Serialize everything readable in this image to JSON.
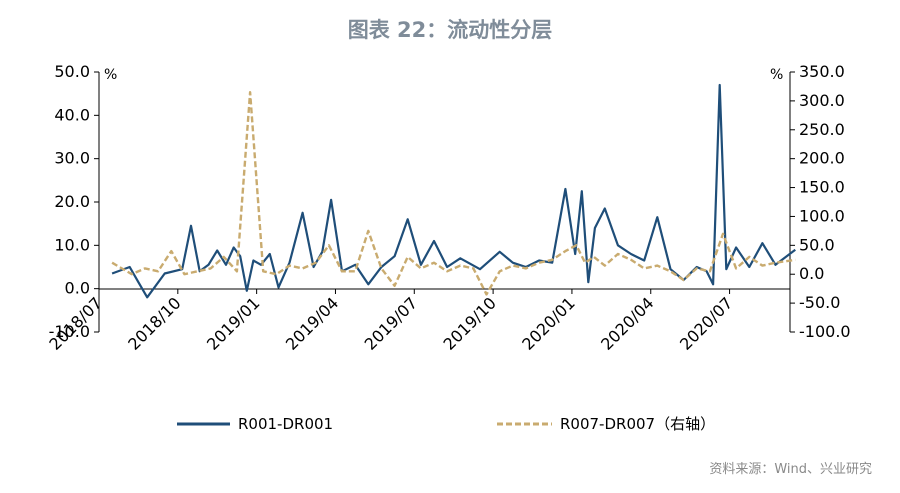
{
  "title": "图表 22：流动性分层",
  "source": "资料来源：Wind、兴业研究",
  "colors": {
    "series1": "#1f4e79",
    "series2": "#c9ab6f"
  },
  "chart_data": {
    "type": "line",
    "title": "图表 22：流动性分层",
    "left_unit": "%",
    "right_unit": "%",
    "y_left_lim": [
      -10,
      50
    ],
    "y_right_lim": [
      -100,
      350
    ],
    "y_left_ticks": [
      "50.0",
      "40.0",
      "30.0",
      "20.0",
      "10.0",
      "0.0",
      "-10.0"
    ],
    "y_right_ticks": [
      "350.0",
      "300.0",
      "250.0",
      "200.0",
      "150.0",
      "100.0",
      "50.0",
      "0.0",
      "-50.0",
      "-100.0"
    ],
    "x_ticks": [
      "2018/07",
      "2018/10",
      "2019/01",
      "2019/04",
      "2019/07",
      "2019/10",
      "2020/01",
      "2020/04",
      "2020/07"
    ],
    "legend_position": "bottom",
    "series": [
      {
        "name": "R001-DR001",
        "axis": "left",
        "style": "solid",
        "points": [
          [
            "2018/07",
            3.5
          ],
          [
            "2018/08",
            5.0
          ],
          [
            "2018/08",
            1.5
          ],
          [
            "2018/08",
            -2.0
          ],
          [
            "2018/09",
            3.5
          ],
          [
            "2018/10",
            4.5
          ],
          [
            "2018/10",
            14.5
          ],
          [
            "2018/10",
            4.0
          ],
          [
            "2018/11",
            5.5
          ],
          [
            "2018/11",
            8.8
          ],
          [
            "2018/11",
            5.5
          ],
          [
            "2018/12",
            9.5
          ],
          [
            "2018/12",
            7.5
          ],
          [
            "2018/12",
            -0.5
          ],
          [
            "2018/12",
            6.5
          ],
          [
            "2019/01",
            5.5
          ],
          [
            "2019/01",
            8.0
          ],
          [
            "2019/01",
            0.3
          ],
          [
            "2019/02",
            6.0
          ],
          [
            "2019/02",
            17.5
          ],
          [
            "2019/03",
            5.0
          ],
          [
            "2019/03",
            8.5
          ],
          [
            "2019/03",
            20.5
          ],
          [
            "2019/04",
            4.0
          ],
          [
            "2019/04",
            5.5
          ],
          [
            "2019/05",
            1.0
          ],
          [
            "2019/05",
            5.0
          ],
          [
            "2019/06",
            7.5
          ],
          [
            "2019/06",
            16.0
          ],
          [
            "2019/07",
            5.5
          ],
          [
            "2019/07",
            11.0
          ],
          [
            "2019/08",
            5.0
          ],
          [
            "2019/08",
            7.0
          ],
          [
            "2019/09",
            4.5
          ],
          [
            "2019/10",
            8.5
          ],
          [
            "2019/10",
            6.0
          ],
          [
            "2019/11",
            5.0
          ],
          [
            "2019/11",
            6.5
          ],
          [
            "2019/12",
            6.0
          ],
          [
            "2019/12",
            23.0
          ],
          [
            "2020/01",
            8.0
          ],
          [
            "2020/01",
            22.5
          ],
          [
            "2020/01",
            1.5
          ],
          [
            "2020/01",
            14.0
          ],
          [
            "2020/02",
            18.5
          ],
          [
            "2020/02",
            10.0
          ],
          [
            "2020/03",
            8.0
          ],
          [
            "2020/03",
            6.5
          ],
          [
            "2020/04",
            16.5
          ],
          [
            "2020/04",
            4.5
          ],
          [
            "2020/05",
            2.0
          ],
          [
            "2020/05",
            5.0
          ],
          [
            "2020/06",
            4.0
          ],
          [
            "2020/06",
            1.0
          ],
          [
            "2020/06",
            47.0
          ],
          [
            "2020/06",
            4.5
          ],
          [
            "2020/07",
            9.5
          ],
          [
            "2020/07",
            5.0
          ],
          [
            "2020/08",
            10.5
          ],
          [
            "2020/08",
            5.5
          ],
          [
            "2020/09",
            9.0
          ]
        ]
      },
      {
        "name": "R007-DR007（右轴）",
        "axis": "right",
        "style": "dashed",
        "points": [
          [
            "2018/07",
            20
          ],
          [
            "2018/08",
            0
          ],
          [
            "2018/08",
            10
          ],
          [
            "2018/09",
            5
          ],
          [
            "2018/09",
            40
          ],
          [
            "2018/10",
            0
          ],
          [
            "2018/10",
            5
          ],
          [
            "2018/11",
            10
          ],
          [
            "2018/11",
            30
          ],
          [
            "2018/12",
            5
          ],
          [
            "2018/12",
            315
          ],
          [
            "2019/01",
            5
          ],
          [
            "2019/01",
            0
          ],
          [
            "2019/02",
            15
          ],
          [
            "2019/02",
            10
          ],
          [
            "2019/03",
            20
          ],
          [
            "2019/03",
            50
          ],
          [
            "2019/04",
            5
          ],
          [
            "2019/04",
            5
          ],
          [
            "2019/05",
            75
          ],
          [
            "2019/05",
            10
          ],
          [
            "2019/06",
            -20
          ],
          [
            "2019/06",
            30
          ],
          [
            "2019/07",
            10
          ],
          [
            "2019/07",
            20
          ],
          [
            "2019/08",
            5
          ],
          [
            "2019/08",
            15
          ],
          [
            "2019/09",
            10
          ],
          [
            "2019/09",
            -35
          ],
          [
            "2019/10",
            5
          ],
          [
            "2019/10",
            15
          ],
          [
            "2019/11",
            10
          ],
          [
            "2019/11",
            20
          ],
          [
            "2019/12",
            25
          ],
          [
            "2019/12",
            40
          ],
          [
            "2020/01",
            50
          ],
          [
            "2020/01",
            20
          ],
          [
            "2020/01",
            30
          ],
          [
            "2020/02",
            15
          ],
          [
            "2020/02",
            35
          ],
          [
            "2020/03",
            25
          ],
          [
            "2020/03",
            10
          ],
          [
            "2020/04",
            15
          ],
          [
            "2020/04",
            5
          ],
          [
            "2020/05",
            -10
          ],
          [
            "2020/05",
            10
          ],
          [
            "2020/06",
            5
          ],
          [
            "2020/06",
            70
          ],
          [
            "2020/07",
            10
          ],
          [
            "2020/07",
            30
          ],
          [
            "2020/08",
            15
          ],
          [
            "2020/08",
            20
          ],
          [
            "2020/09",
            25
          ]
        ]
      }
    ]
  }
}
